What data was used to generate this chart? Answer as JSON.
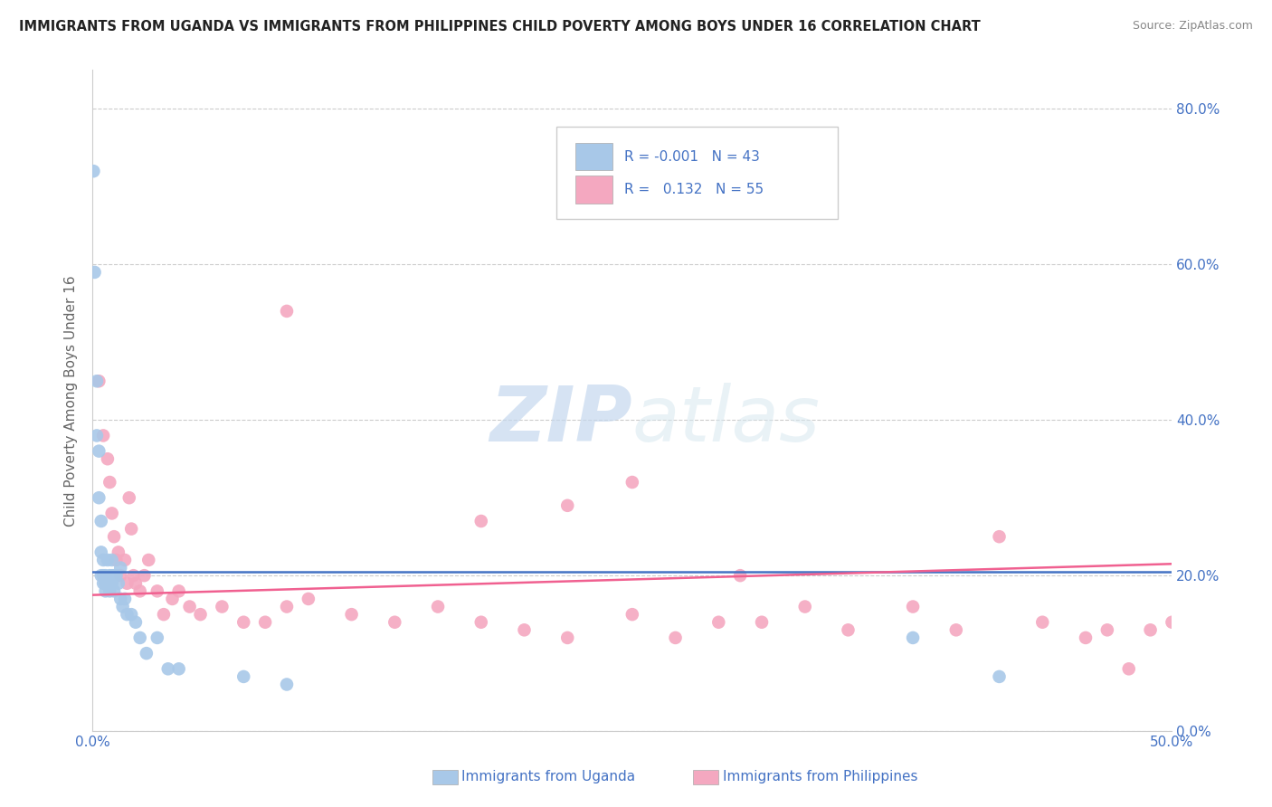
{
  "title": "IMMIGRANTS FROM UGANDA VS IMMIGRANTS FROM PHILIPPINES CHILD POVERTY AMONG BOYS UNDER 16 CORRELATION CHART",
  "source": "Source: ZipAtlas.com",
  "xlabel_uganda": "Immigrants from Uganda",
  "xlabel_philippines": "Immigrants from Philippines",
  "ylabel": "Child Poverty Among Boys Under 16",
  "xlim": [
    0.0,
    0.5
  ],
  "ylim": [
    0.0,
    0.85
  ],
  "xticks": [
    0.0,
    0.5
  ],
  "xtick_labels": [
    "0.0%",
    "50.0%"
  ],
  "yticks": [
    0.0,
    0.2,
    0.4,
    0.6,
    0.8
  ],
  "ytick_labels": [
    "0.0%",
    "20.0%",
    "40.0%",
    "60.0%",
    "80.0%"
  ],
  "uganda_R": -0.001,
  "uganda_N": 43,
  "philippines_R": 0.132,
  "philippines_N": 55,
  "watermark_zip": "ZIP",
  "watermark_atlas": "atlas",
  "uganda_color": "#a8c8e8",
  "philippines_color": "#f4a8c0",
  "uganda_line_color": "#4472c4",
  "philippines_line_color": "#f06090",
  "text_color": "#4472c4",
  "grid_color": "#cccccc",
  "uganda_scatter_x": [
    0.0005,
    0.001,
    0.002,
    0.002,
    0.003,
    0.003,
    0.004,
    0.004,
    0.004,
    0.005,
    0.005,
    0.005,
    0.006,
    0.006,
    0.006,
    0.007,
    0.007,
    0.008,
    0.008,
    0.008,
    0.009,
    0.009,
    0.009,
    0.01,
    0.01,
    0.011,
    0.012,
    0.013,
    0.013,
    0.014,
    0.015,
    0.016,
    0.018,
    0.02,
    0.022,
    0.025,
    0.03,
    0.035,
    0.04,
    0.07,
    0.09,
    0.38,
    0.42
  ],
  "uganda_scatter_y": [
    0.72,
    0.59,
    0.45,
    0.38,
    0.36,
    0.3,
    0.27,
    0.23,
    0.2,
    0.22,
    0.2,
    0.19,
    0.2,
    0.19,
    0.18,
    0.22,
    0.19,
    0.2,
    0.19,
    0.18,
    0.22,
    0.2,
    0.19,
    0.2,
    0.18,
    0.2,
    0.19,
    0.21,
    0.17,
    0.16,
    0.17,
    0.15,
    0.15,
    0.14,
    0.12,
    0.1,
    0.12,
    0.08,
    0.08,
    0.07,
    0.06,
    0.12,
    0.07
  ],
  "philippines_scatter_x": [
    0.003,
    0.005,
    0.007,
    0.008,
    0.009,
    0.01,
    0.011,
    0.012,
    0.013,
    0.015,
    0.016,
    0.017,
    0.018,
    0.019,
    0.02,
    0.022,
    0.024,
    0.026,
    0.03,
    0.033,
    0.037,
    0.04,
    0.045,
    0.05,
    0.06,
    0.07,
    0.08,
    0.09,
    0.1,
    0.12,
    0.14,
    0.16,
    0.18,
    0.2,
    0.22,
    0.25,
    0.27,
    0.29,
    0.31,
    0.33,
    0.35,
    0.38,
    0.4,
    0.42,
    0.44,
    0.46,
    0.47,
    0.48,
    0.49,
    0.5,
    0.18,
    0.22,
    0.09,
    0.3,
    0.25
  ],
  "philippines_scatter_y": [
    0.45,
    0.38,
    0.35,
    0.32,
    0.28,
    0.25,
    0.22,
    0.23,
    0.2,
    0.22,
    0.19,
    0.3,
    0.26,
    0.2,
    0.19,
    0.18,
    0.2,
    0.22,
    0.18,
    0.15,
    0.17,
    0.18,
    0.16,
    0.15,
    0.16,
    0.14,
    0.14,
    0.16,
    0.17,
    0.15,
    0.14,
    0.16,
    0.14,
    0.13,
    0.12,
    0.15,
    0.12,
    0.14,
    0.14,
    0.16,
    0.13,
    0.16,
    0.13,
    0.25,
    0.14,
    0.12,
    0.13,
    0.08,
    0.13,
    0.14,
    0.27,
    0.29,
    0.54,
    0.2,
    0.32
  ],
  "uganda_line_y_start": 0.205,
  "uganda_line_y_end": 0.205,
  "philippines_line_y_start": 0.175,
  "philippines_line_y_end": 0.215
}
